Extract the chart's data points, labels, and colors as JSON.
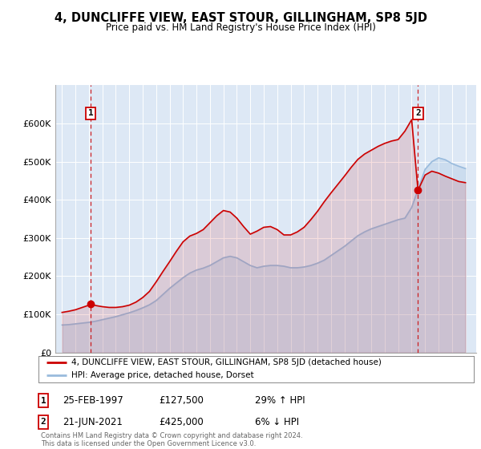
{
  "title": "4, DUNCLIFFE VIEW, EAST STOUR, GILLINGHAM, SP8 5JD",
  "subtitle": "Price paid vs. HM Land Registry's House Price Index (HPI)",
  "ylim": [
    0,
    700000
  ],
  "xlim_start": 1994.5,
  "xlim_end": 2025.8,
  "sale1_date": 1997.14,
  "sale1_price": 127500,
  "sale1_label": "1",
  "sale2_date": 2021.47,
  "sale2_price": 425000,
  "sale2_label": "2",
  "red_line_color": "#cc0000",
  "blue_line_color": "#99bbdd",
  "dashed_line_color": "#cc0000",
  "dot_color": "#cc0000",
  "plot_bg": "#dde8f5",
  "legend_label_red": "4, DUNCLIFFE VIEW, EAST STOUR, GILLINGHAM, SP8 5JD (detached house)",
  "legend_label_blue": "HPI: Average price, detached house, Dorset",
  "footnote": "Contains HM Land Registry data © Crown copyright and database right 2024.\nThis data is licensed under the Open Government Licence v3.0.",
  "yticks": [
    0,
    100000,
    200000,
    300000,
    400000,
    500000,
    600000
  ],
  "ytick_labels": [
    "£0",
    "£100K",
    "£200K",
    "£300K",
    "£400K",
    "£500K",
    "£600K"
  ],
  "hpi_years": [
    1995.0,
    1995.5,
    1996.0,
    1996.5,
    1997.0,
    1997.5,
    1998.0,
    1998.5,
    1999.0,
    1999.5,
    2000.0,
    2000.5,
    2001.0,
    2001.5,
    2002.0,
    2002.5,
    2003.0,
    2003.5,
    2004.0,
    2004.5,
    2005.0,
    2005.5,
    2006.0,
    2006.5,
    2007.0,
    2007.5,
    2008.0,
    2008.5,
    2009.0,
    2009.5,
    2010.0,
    2010.5,
    2011.0,
    2011.5,
    2012.0,
    2012.5,
    2013.0,
    2013.5,
    2014.0,
    2014.5,
    2015.0,
    2015.5,
    2016.0,
    2016.5,
    2017.0,
    2017.5,
    2018.0,
    2018.5,
    2019.0,
    2019.5,
    2020.0,
    2020.5,
    2021.0,
    2021.5,
    2022.0,
    2022.5,
    2023.0,
    2023.5,
    2024.0,
    2024.5,
    2025.0
  ],
  "hpi_values": [
    72000,
    73000,
    75000,
    77000,
    79000,
    82000,
    86000,
    90000,
    94000,
    99000,
    104000,
    110000,
    117000,
    125000,
    136000,
    152000,
    168000,
    182000,
    196000,
    208000,
    216000,
    221000,
    228000,
    238000,
    248000,
    252000,
    248000,
    238000,
    228000,
    222000,
    226000,
    228000,
    228000,
    226000,
    222000,
    222000,
    224000,
    228000,
    234000,
    242000,
    254000,
    266000,
    278000,
    292000,
    306000,
    316000,
    324000,
    330000,
    336000,
    342000,
    348000,
    352000,
    380000,
    430000,
    480000,
    500000,
    510000,
    505000,
    495000,
    488000,
    482000
  ],
  "red_years": [
    1995.0,
    1995.5,
    1996.0,
    1996.5,
    1997.0,
    1997.14,
    1997.5,
    1998.0,
    1998.5,
    1999.0,
    1999.5,
    2000.0,
    2000.5,
    2001.0,
    2001.5,
    2002.0,
    2002.5,
    2003.0,
    2003.5,
    2004.0,
    2004.5,
    2005.0,
    2005.5,
    2006.0,
    2006.5,
    2007.0,
    2007.5,
    2008.0,
    2008.5,
    2009.0,
    2009.5,
    2010.0,
    2010.5,
    2011.0,
    2011.5,
    2012.0,
    2012.5,
    2013.0,
    2013.5,
    2014.0,
    2014.5,
    2015.0,
    2015.5,
    2016.0,
    2016.5,
    2017.0,
    2017.5,
    2018.0,
    2018.5,
    2019.0,
    2019.5,
    2020.0,
    2020.5,
    2021.0,
    2021.47,
    2021.8,
    2022.0,
    2022.5,
    2023.0,
    2023.5,
    2024.0,
    2024.5,
    2025.0
  ],
  "red_values": [
    105000,
    108000,
    112000,
    118000,
    124000,
    127500,
    123000,
    120000,
    118000,
    118000,
    120000,
    124000,
    132000,
    144000,
    160000,
    185000,
    212000,
    238000,
    265000,
    290000,
    305000,
    312000,
    322000,
    340000,
    358000,
    372000,
    368000,
    352000,
    330000,
    310000,
    318000,
    328000,
    330000,
    322000,
    308000,
    308000,
    316000,
    328000,
    348000,
    370000,
    395000,
    418000,
    440000,
    462000,
    485000,
    506000,
    520000,
    530000,
    540000,
    548000,
    554000,
    558000,
    580000,
    610000,
    425000,
    450000,
    465000,
    475000,
    470000,
    462000,
    455000,
    448000,
    445000
  ]
}
